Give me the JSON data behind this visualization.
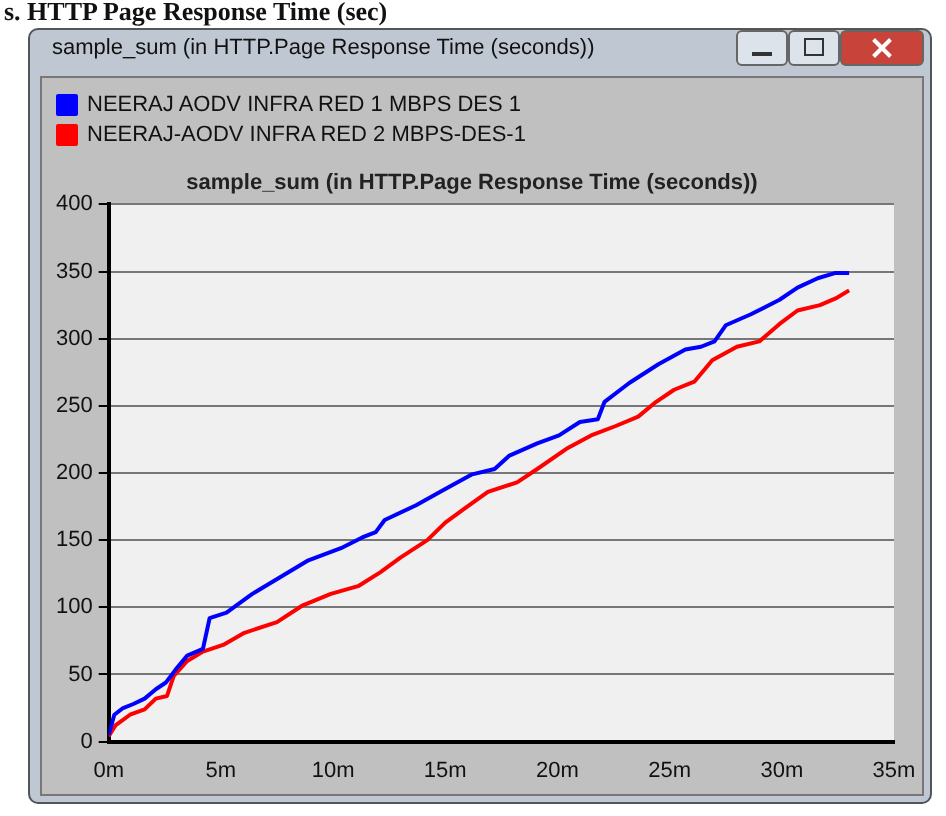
{
  "chart_data": {
    "type": "line",
    "title": "sample_sum (in HTTP.Page Response Time (seconds))",
    "annotations": [
      "s. HTTP Page Response Time (sec)",
      "sample_sum (in HTTP.Page Response Time (seconds))"
    ],
    "series": [
      {
        "name": "NEERAJ AODV INFRA RED 1 MBPS DES 1",
        "color": "#0000ff",
        "x": [
          0,
          0.25,
          0.64,
          1.1,
          1.6,
          2.1,
          2.55,
          3.0,
          3.5,
          4.2,
          4.5,
          5.25,
          6.4,
          7.6,
          8.9,
          10.35,
          11.3,
          11.9,
          12.3,
          13.7,
          15.0,
          16.2,
          17.2,
          17.86,
          19.1,
          20.07,
          21.0,
          21.8,
          22.1,
          23.2,
          24.5,
          25.7,
          26.4,
          27.0,
          27.5,
          28.6,
          29.9,
          30.7,
          31.6,
          32.4,
          33.0
        ],
        "values": [
          5,
          20,
          25,
          28,
          32,
          39,
          44,
          54,
          64,
          69,
          92,
          96,
          110,
          122,
          135,
          144,
          152,
          156,
          165,
          176,
          188,
          199,
          203,
          213,
          222,
          228,
          238,
          240,
          253,
          267,
          281,
          292,
          294,
          298,
          310,
          318,
          329,
          338,
          345,
          349,
          349
        ]
      },
      {
        "name": "NEERAJ-AODV INFRA RED 2 MBPS-DES-1",
        "color": "#ff0000",
        "x": [
          0,
          0.3,
          0.95,
          1.6,
          2.1,
          2.6,
          2.9,
          3.5,
          4.2,
          5.1,
          6.05,
          7.5,
          8.6,
          9.9,
          11.15,
          12.1,
          13.0,
          14.2,
          15.0,
          15.9,
          16.9,
          18.2,
          19.1,
          20.4,
          21.5,
          22.6,
          23.6,
          24.4,
          25.2,
          26.1,
          26.9,
          28.0,
          29.0,
          29.9,
          30.7,
          31.7,
          32.4,
          33.0
        ],
        "values": [
          4,
          12,
          20,
          24,
          32,
          34,
          49,
          60,
          67,
          72,
          81,
          89,
          101,
          110,
          116,
          126,
          137,
          150,
          163,
          174,
          186,
          193,
          203,
          218,
          228,
          235,
          242,
          253,
          262,
          268,
          284,
          294,
          298,
          311,
          321,
          325,
          330,
          336
        ]
      }
    ],
    "xlim": [
      0,
      35
    ],
    "xticks": [
      {
        "value": 0,
        "label": "0m"
      },
      {
        "value": 5,
        "label": "5m"
      },
      {
        "value": 10,
        "label": "10m"
      },
      {
        "value": 15,
        "label": "15m"
      },
      {
        "value": 20,
        "label": "20m"
      },
      {
        "value": 25,
        "label": "25m"
      },
      {
        "value": 30,
        "label": "30m"
      },
      {
        "value": 35,
        "label": "35m"
      }
    ],
    "ylim": [
      0,
      400
    ],
    "yticks": [
      0,
      50,
      100,
      150,
      200,
      250,
      300,
      350,
      400
    ],
    "grid": "y",
    "legend": "top left",
    "marker": "none",
    "line_style": "solid"
  }
}
